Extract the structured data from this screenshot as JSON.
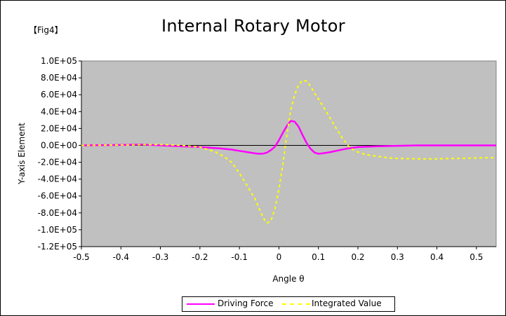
{
  "fig_label": "【Fig4】",
  "chart_data": {
    "type": "line",
    "title": "Internal Rotary Motor",
    "xlabel": "Angle θ",
    "ylabel": "Y-axis Element",
    "xlim": [
      -0.5,
      0.55
    ],
    "ylim": [
      -120000,
      100000
    ],
    "x_ticks": [
      "-0.5",
      "-0.4",
      "-0.3",
      "-0.2",
      "-0.1",
      "0",
      "0.1",
      "0.2",
      "0.3",
      "0.4",
      "0.5"
    ],
    "y_ticks": [
      "1.0E+05",
      "8.0E+04",
      "6.0E+04",
      "4.0E+04",
      "2.0E+04",
      "0.0E+00",
      "-2.0E+04",
      "-4.0E+04",
      "-6.0E+04",
      "-8.0E+04",
      "-1.0E+05",
      "-1.2E+05"
    ],
    "grid": false,
    "legend_position": "bottom",
    "plot_background": "#c0c0c0",
    "series": [
      {
        "name": "Driving Force",
        "color": "#ff00ff",
        "style": "solid",
        "x": [
          -0.5,
          -0.4,
          -0.35,
          -0.3,
          -0.25,
          -0.2,
          -0.15,
          -0.12,
          -0.1,
          -0.08,
          -0.06,
          -0.05,
          -0.04,
          -0.03,
          -0.02,
          -0.01,
          0,
          0.01,
          0.02,
          0.03,
          0.04,
          0.05,
          0.06,
          0.07,
          0.08,
          0.09,
          0.1,
          0.11,
          0.13,
          0.15,
          0.17,
          0.2,
          0.25,
          0.3,
          0.35,
          0.4,
          0.45,
          0.5,
          0.55
        ],
        "y": [
          0,
          500,
          1000,
          0,
          -1000,
          -2000,
          -3500,
          -5000,
          -6500,
          -8000,
          -9500,
          -10000,
          -9800,
          -8500,
          -5500,
          -1500,
          6000,
          15000,
          23000,
          29000,
          28000,
          22000,
          12000,
          3000,
          -4000,
          -8500,
          -10000,
          -9500,
          -8000,
          -6000,
          -4000,
          -2000,
          -1000,
          -500,
          0,
          0,
          0,
          0,
          0
        ]
      },
      {
        "name": "Integrated Value",
        "color": "#ffff00",
        "style": "dashed",
        "x": [
          -0.5,
          -0.4,
          -0.3,
          -0.25,
          -0.2,
          -0.18,
          -0.16,
          -0.14,
          -0.12,
          -0.1,
          -0.08,
          -0.06,
          -0.05,
          -0.04,
          -0.03,
          -0.02,
          -0.01,
          0,
          0.01,
          0.02,
          0.03,
          0.04,
          0.05,
          0.06,
          0.07,
          0.08,
          0.09,
          0.1,
          0.12,
          0.14,
          0.16,
          0.18,
          0.2,
          0.22,
          0.25,
          0.28,
          0.3,
          0.35,
          0.4,
          0.45,
          0.5,
          0.55
        ],
        "y": [
          0,
          500,
          1000,
          0,
          -2000,
          -5000,
          -8000,
          -13000,
          -20000,
          -33000,
          -48000,
          -64000,
          -75000,
          -86000,
          -92000,
          -89000,
          -75000,
          -52000,
          -22000,
          12000,
          42000,
          60000,
          72000,
          77000,
          76000,
          70000,
          62000,
          55000,
          40000,
          24000,
          9000,
          -3000,
          -8000,
          -11000,
          -13000,
          -15000,
          -15500,
          -16000,
          -16000,
          -15500,
          -15000,
          -14500
        ]
      }
    ]
  }
}
